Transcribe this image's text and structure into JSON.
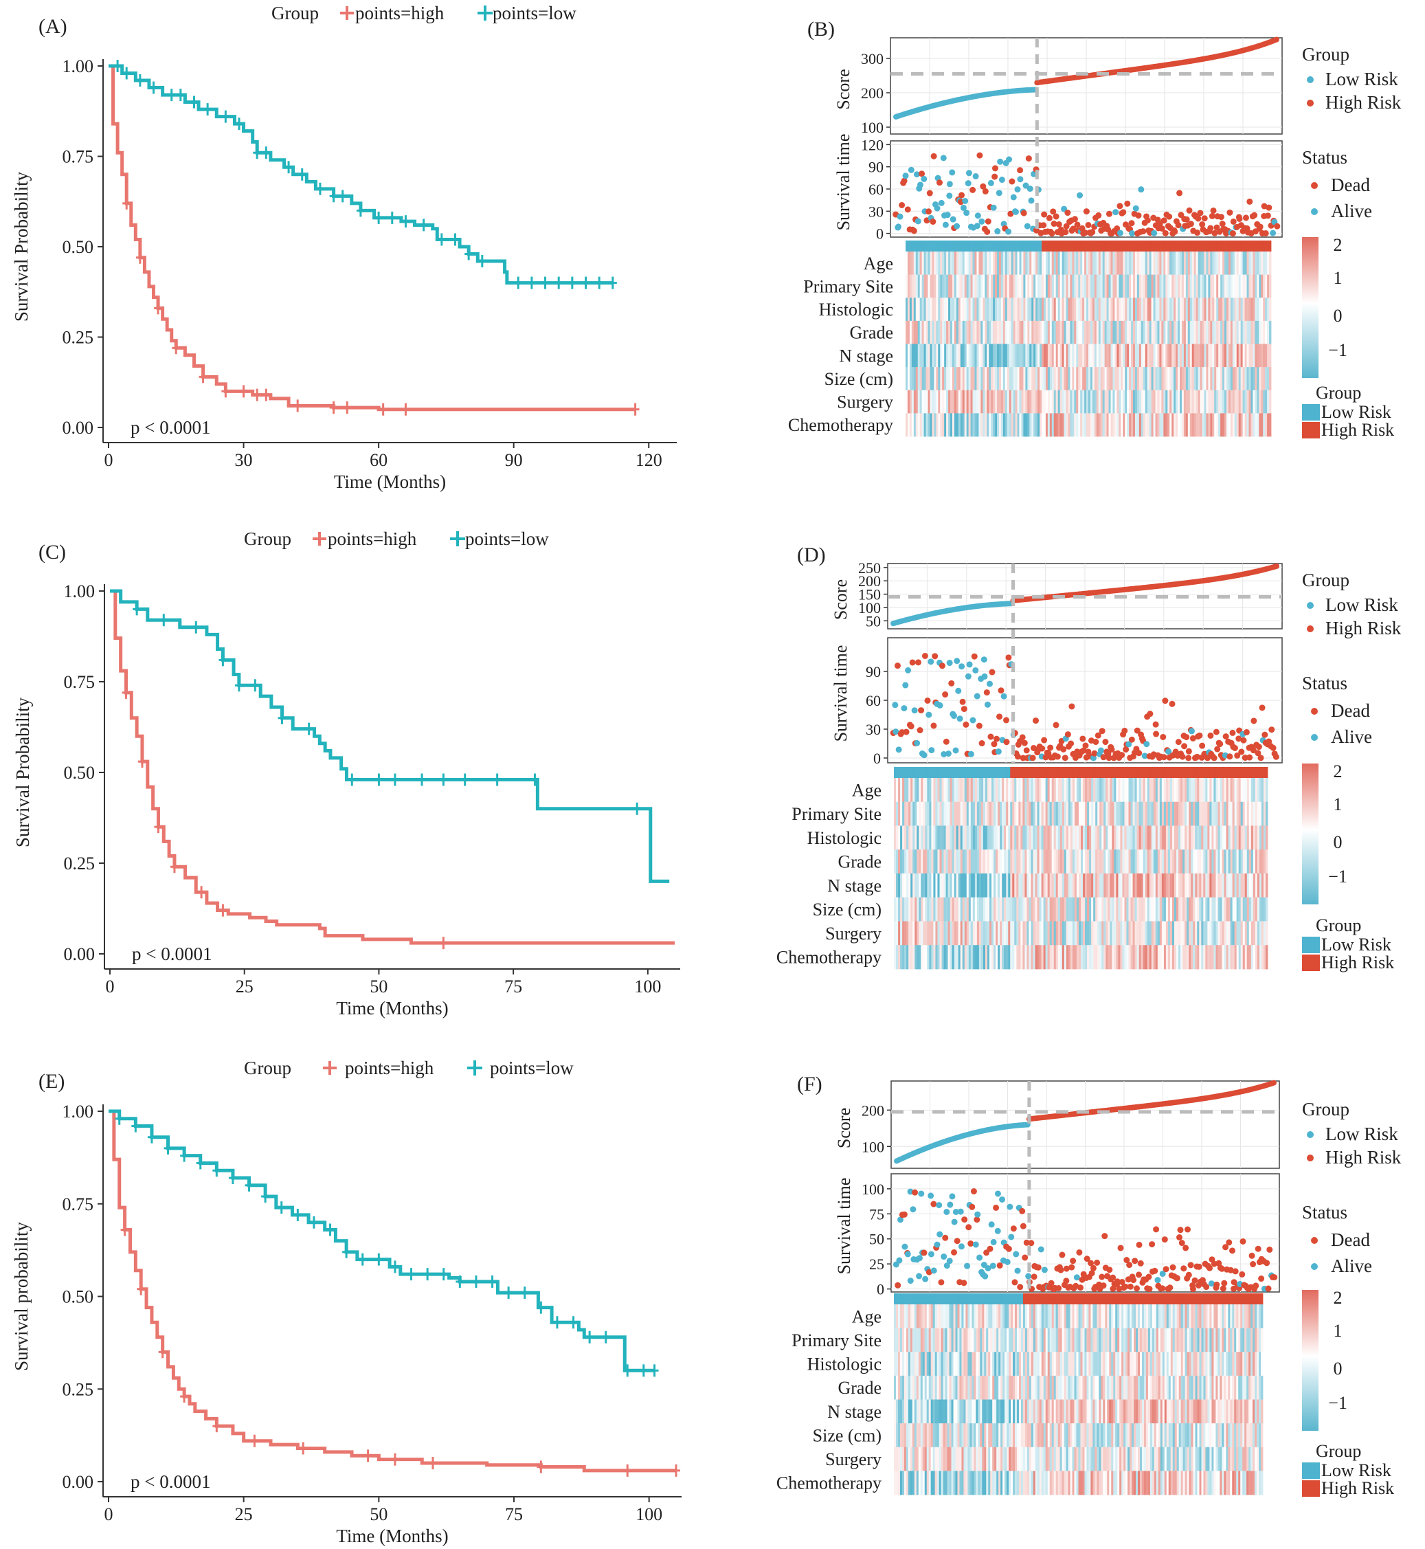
{
  "colors": {
    "km_high": "#E8766E",
    "km_low": "#22B3BC",
    "risk_low": "#4DB3CF",
    "risk_high": "#DC4B34",
    "heat_low": "#5AB6CE",
    "heat_mid": "#FFFFFF",
    "heat_high": "#E26B5F",
    "cutoff": "#BBBBBB",
    "grid": "#E6E6E6"
  },
  "km_panels": [
    {
      "label": "(A)",
      "legend_title": "Group",
      "legend_high": "points=high",
      "legend_low": "points=low",
      "ylabel": "Survival Probability",
      "xlabel": "Time (Months)",
      "pvalue": "p < 0.0001",
      "xmax": 125,
      "xticks": [
        0,
        30,
        60,
        90,
        120
      ],
      "yticks": [
        "0.00",
        "0.25",
        "0.50",
        "0.75",
        "1.00"
      ],
      "series_high": [
        [
          0,
          1.0
        ],
        [
          1,
          0.84
        ],
        [
          2,
          0.76
        ],
        [
          3,
          0.7
        ],
        [
          4,
          0.62
        ],
        [
          5,
          0.56
        ],
        [
          6,
          0.52
        ],
        [
          7,
          0.47
        ],
        [
          8,
          0.43
        ],
        [
          9,
          0.39
        ],
        [
          10,
          0.36
        ],
        [
          11,
          0.33
        ],
        [
          12,
          0.3
        ],
        [
          13,
          0.27
        ],
        [
          14,
          0.24
        ],
        [
          15,
          0.22
        ],
        [
          17,
          0.2
        ],
        [
          19,
          0.17
        ],
        [
          21,
          0.14
        ],
        [
          24,
          0.12
        ],
        [
          26,
          0.1
        ],
        [
          32,
          0.09
        ],
        [
          36,
          0.08
        ],
        [
          40,
          0.06
        ],
        [
          50,
          0.055
        ],
        [
          60,
          0.05
        ],
        [
          117,
          0.05
        ]
      ],
      "series_low": [
        [
          0,
          1.0
        ],
        [
          3,
          0.98
        ],
        [
          6,
          0.96
        ],
        [
          9,
          0.94
        ],
        [
          12,
          0.92
        ],
        [
          17,
          0.9
        ],
        [
          20,
          0.88
        ],
        [
          24,
          0.86
        ],
        [
          28,
          0.84
        ],
        [
          30,
          0.82
        ],
        [
          32,
          0.79
        ],
        [
          33,
          0.76
        ],
        [
          36,
          0.74
        ],
        [
          39,
          0.72
        ],
        [
          41,
          0.7
        ],
        [
          44,
          0.68
        ],
        [
          46,
          0.66
        ],
        [
          50,
          0.64
        ],
        [
          54,
          0.62
        ],
        [
          56,
          0.6
        ],
        [
          59,
          0.58
        ],
        [
          65,
          0.57
        ],
        [
          68,
          0.56
        ],
        [
          72,
          0.55
        ],
        [
          73,
          0.52
        ],
        [
          78,
          0.5
        ],
        [
          80,
          0.48
        ],
        [
          82,
          0.46
        ],
        [
          88,
          0.43
        ],
        [
          88.5,
          0.4
        ],
        [
          112,
          0.4
        ]
      ],
      "censor_high": [
        4,
        7,
        11,
        15,
        21,
        26,
        30,
        33,
        35,
        42,
        50,
        53,
        61,
        66,
        117
      ],
      "censor_low": [
        2,
        4,
        7,
        10,
        14,
        16,
        19,
        22,
        26,
        29,
        33,
        35,
        40,
        43,
        47,
        50,
        52,
        56,
        60,
        63,
        66,
        70,
        74,
        77,
        80,
        83,
        91,
        94,
        97,
        100,
        103,
        106,
        109,
        112
      ]
    },
    {
      "label": "(C)",
      "legend_title": "Group",
      "legend_high": "points=high",
      "legend_low": "points=low",
      "ylabel": "Survival Probability",
      "xlabel": "Time (Months)",
      "pvalue": "p < 0.0001",
      "xmax": 105,
      "xticks": [
        0,
        25,
        50,
        75,
        100
      ],
      "yticks": [
        "0.00",
        "0.25",
        "0.50",
        "0.75",
        "1.00"
      ],
      "series_high": [
        [
          0,
          1.0
        ],
        [
          1,
          0.87
        ],
        [
          2,
          0.78
        ],
        [
          3,
          0.72
        ],
        [
          4,
          0.65
        ],
        [
          5,
          0.6
        ],
        [
          6,
          0.53
        ],
        [
          7,
          0.46
        ],
        [
          8,
          0.4
        ],
        [
          9,
          0.35
        ],
        [
          10,
          0.31
        ],
        [
          11,
          0.27
        ],
        [
          12,
          0.24
        ],
        [
          14,
          0.21
        ],
        [
          16,
          0.17
        ],
        [
          18,
          0.14
        ],
        [
          20,
          0.12
        ],
        [
          22,
          0.11
        ],
        [
          26,
          0.1
        ],
        [
          29,
          0.09
        ],
        [
          31,
          0.08
        ],
        [
          39,
          0.07
        ],
        [
          40,
          0.05
        ],
        [
          47,
          0.04
        ],
        [
          56,
          0.03
        ],
        [
          105,
          0.03
        ]
      ],
      "series_low": [
        [
          0,
          1.0
        ],
        [
          2,
          0.97
        ],
        [
          5,
          0.95
        ],
        [
          7,
          0.92
        ],
        [
          13,
          0.9
        ],
        [
          18,
          0.88
        ],
        [
          20,
          0.84
        ],
        [
          21,
          0.81
        ],
        [
          23,
          0.77
        ],
        [
          24,
          0.74
        ],
        [
          28,
          0.71
        ],
        [
          30,
          0.68
        ],
        [
          32,
          0.65
        ],
        [
          34,
          0.62
        ],
        [
          38,
          0.6
        ],
        [
          39,
          0.58
        ],
        [
          40,
          0.56
        ],
        [
          41,
          0.54
        ],
        [
          43,
          0.51
        ],
        [
          44,
          0.48
        ],
        [
          79,
          0.48
        ],
        [
          79.5,
          0.4
        ],
        [
          100,
          0.4
        ],
        [
          100.5,
          0.2
        ],
        [
          104,
          0.2
        ]
      ],
      "censor_high": [
        3,
        6,
        9,
        12,
        17,
        21,
        62
      ],
      "censor_low": [
        5,
        10,
        16,
        21,
        24,
        27,
        32,
        37,
        45,
        50,
        53,
        58,
        62,
        66,
        72,
        79,
        98
      ]
    },
    {
      "label": "(E)",
      "legend_title": "Group",
      "legend_high": "points=high",
      "legend_low": "points=low",
      "ylabel": "Survival probability",
      "xlabel": "Time (Months)",
      "pvalue": "p < 0.0001",
      "xmax": 105,
      "xticks": [
        0,
        25,
        50,
        75,
        100
      ],
      "yticks": [
        "0.00",
        "0.25",
        "0.50",
        "0.75",
        "1.00"
      ],
      "series_high": [
        [
          0,
          1.0
        ],
        [
          1,
          0.87
        ],
        [
          2,
          0.74
        ],
        [
          3,
          0.68
        ],
        [
          4,
          0.62
        ],
        [
          5,
          0.57
        ],
        [
          6,
          0.52
        ],
        [
          7,
          0.47
        ],
        [
          8,
          0.43
        ],
        [
          9,
          0.39
        ],
        [
          10,
          0.35
        ],
        [
          11,
          0.31
        ],
        [
          12,
          0.28
        ],
        [
          13,
          0.25
        ],
        [
          14,
          0.23
        ],
        [
          15,
          0.21
        ],
        [
          16,
          0.19
        ],
        [
          18,
          0.17
        ],
        [
          20,
          0.15
        ],
        [
          23,
          0.13
        ],
        [
          25,
          0.11
        ],
        [
          30,
          0.1
        ],
        [
          35,
          0.09
        ],
        [
          40,
          0.08
        ],
        [
          45,
          0.07
        ],
        [
          50,
          0.06
        ],
        [
          58,
          0.05
        ],
        [
          70,
          0.045
        ],
        [
          80,
          0.04
        ],
        [
          88,
          0.03
        ],
        [
          105,
          0.03
        ]
      ],
      "series_low": [
        [
          0,
          1.0
        ],
        [
          2,
          0.98
        ],
        [
          5,
          0.96
        ],
        [
          8,
          0.93
        ],
        [
          11,
          0.9
        ],
        [
          14,
          0.88
        ],
        [
          17,
          0.86
        ],
        [
          20,
          0.84
        ],
        [
          23,
          0.82
        ],
        [
          26,
          0.8
        ],
        [
          29,
          0.77
        ],
        [
          31,
          0.74
        ],
        [
          34,
          0.72
        ],
        [
          37,
          0.7
        ],
        [
          40,
          0.68
        ],
        [
          42,
          0.65
        ],
        [
          44,
          0.62
        ],
        [
          46,
          0.6
        ],
        [
          52,
          0.58
        ],
        [
          54,
          0.56
        ],
        [
          63,
          0.55
        ],
        [
          65,
          0.54
        ],
        [
          70,
          0.54
        ],
        [
          72,
          0.51
        ],
        [
          79,
          0.51
        ],
        [
          79.5,
          0.47
        ],
        [
          82,
          0.43
        ],
        [
          87,
          0.41
        ],
        [
          88,
          0.39
        ],
        [
          95,
          0.39
        ],
        [
          95.5,
          0.3
        ],
        [
          101,
          0.3
        ]
      ],
      "censor_high": [
        3,
        6,
        10,
        14,
        20,
        27,
        36,
        48,
        53,
        60,
        80,
        96,
        105
      ],
      "censor_low": [
        2,
        5,
        8,
        11,
        14,
        17,
        20,
        23,
        26,
        29,
        32,
        35,
        38,
        41,
        44,
        47,
        50,
        53,
        56,
        59,
        62,
        65,
        68,
        71,
        74,
        77,
        80,
        83,
        86,
        89,
        92,
        96,
        99,
        101
      ]
    }
  ],
  "risk_panels": [
    {
      "label": "(B)",
      "score_label": "Score",
      "score_ticks": [
        100,
        200,
        300
      ],
      "score_range": [
        80,
        360
      ],
      "score_min": 130,
      "score_max": 355,
      "score_cut": 255,
      "time_label": "Survival time",
      "time_ticks": [
        0,
        30,
        60,
        90,
        120
      ],
      "time_range": [
        -5,
        125
      ],
      "cut_frac": 0.37,
      "heat_rows": [
        "Age",
        "Primary Site",
        "Histologic",
        "Grade",
        "N stage",
        "Size (cm)",
        "Surgery",
        "Chemotherapy"
      ],
      "legend_group": "Group",
      "legend_low": "Low Risk",
      "legend_high": "High Risk",
      "legend_status": "Status",
      "legend_dead": "Dead",
      "legend_alive": "Alive",
      "scale_labels": [
        "2",
        "1",
        "0",
        "−1"
      ],
      "seed": 11
    },
    {
      "label": "(D)",
      "score_label": "Score",
      "score_ticks": [
        50,
        100,
        150,
        200,
        250
      ],
      "score_range": [
        20,
        265
      ],
      "score_min": 40,
      "score_max": 255,
      "score_cut": 140,
      "time_label": "Survival time",
      "time_ticks": [
        0,
        30,
        60,
        90
      ],
      "time_range": [
        -5,
        125
      ],
      "cut_frac": 0.31,
      "heat_rows": [
        "Age",
        "Primary Site",
        "Histologic",
        "Grade",
        "N stage",
        "Size (cm)",
        "Surgery",
        "Chemotherapy"
      ],
      "legend_group": "Group",
      "legend_low": "Low Risk",
      "legend_high": "High Risk",
      "legend_status": "Status",
      "legend_dead": "Dead",
      "legend_alive": "Alive",
      "scale_labels": [
        "2",
        "1",
        "0",
        "−1"
      ],
      "seed": 23
    },
    {
      "label": "(F)",
      "score_label": "Score",
      "score_ticks": [
        100,
        200
      ],
      "score_range": [
        40,
        280
      ],
      "score_min": 60,
      "score_max": 275,
      "score_cut": 195,
      "time_label": "Survival time",
      "time_ticks": [
        0,
        25,
        50,
        75,
        100
      ],
      "time_range": [
        -3,
        115
      ],
      "cut_frac": 0.35,
      "heat_rows": [
        "Age",
        "Primary Site",
        "Histologic",
        "Grade",
        "N stage",
        "Size (cm)",
        "Surgery",
        "Chemotherapy"
      ],
      "legend_group": "Group",
      "legend_low": "Low Risk",
      "legend_high": "High Risk",
      "legend_status": "Status",
      "legend_dead": "Dead",
      "legend_alive": "Alive",
      "scale_labels": [
        "2",
        "1",
        "0",
        "−1"
      ],
      "seed": 37
    }
  ],
  "chart_data": [
    {
      "type": "line",
      "title": "(A)",
      "xlabel": "Time (Months)",
      "ylabel": "Survival Probability",
      "ylim": [
        0,
        1
      ],
      "note": "see km_panels[0]"
    },
    {
      "type": "scatter",
      "title": "(B)",
      "note": "risk score plot + survival scatter + heatmap; see risk_panels[0]"
    },
    {
      "type": "line",
      "title": "(C)",
      "xlabel": "Time (Months)",
      "ylabel": "Survival Probability",
      "ylim": [
        0,
        1
      ],
      "note": "see km_panels[1]"
    },
    {
      "type": "scatter",
      "title": "(D)",
      "note": "see risk_panels[1]"
    },
    {
      "type": "line",
      "title": "(E)",
      "xlabel": "Time (Months)",
      "ylabel": "Survival probability",
      "ylim": [
        0,
        1
      ],
      "note": "see km_panels[2]"
    },
    {
      "type": "scatter",
      "title": "(F)",
      "note": "see risk_panels[2]"
    }
  ]
}
